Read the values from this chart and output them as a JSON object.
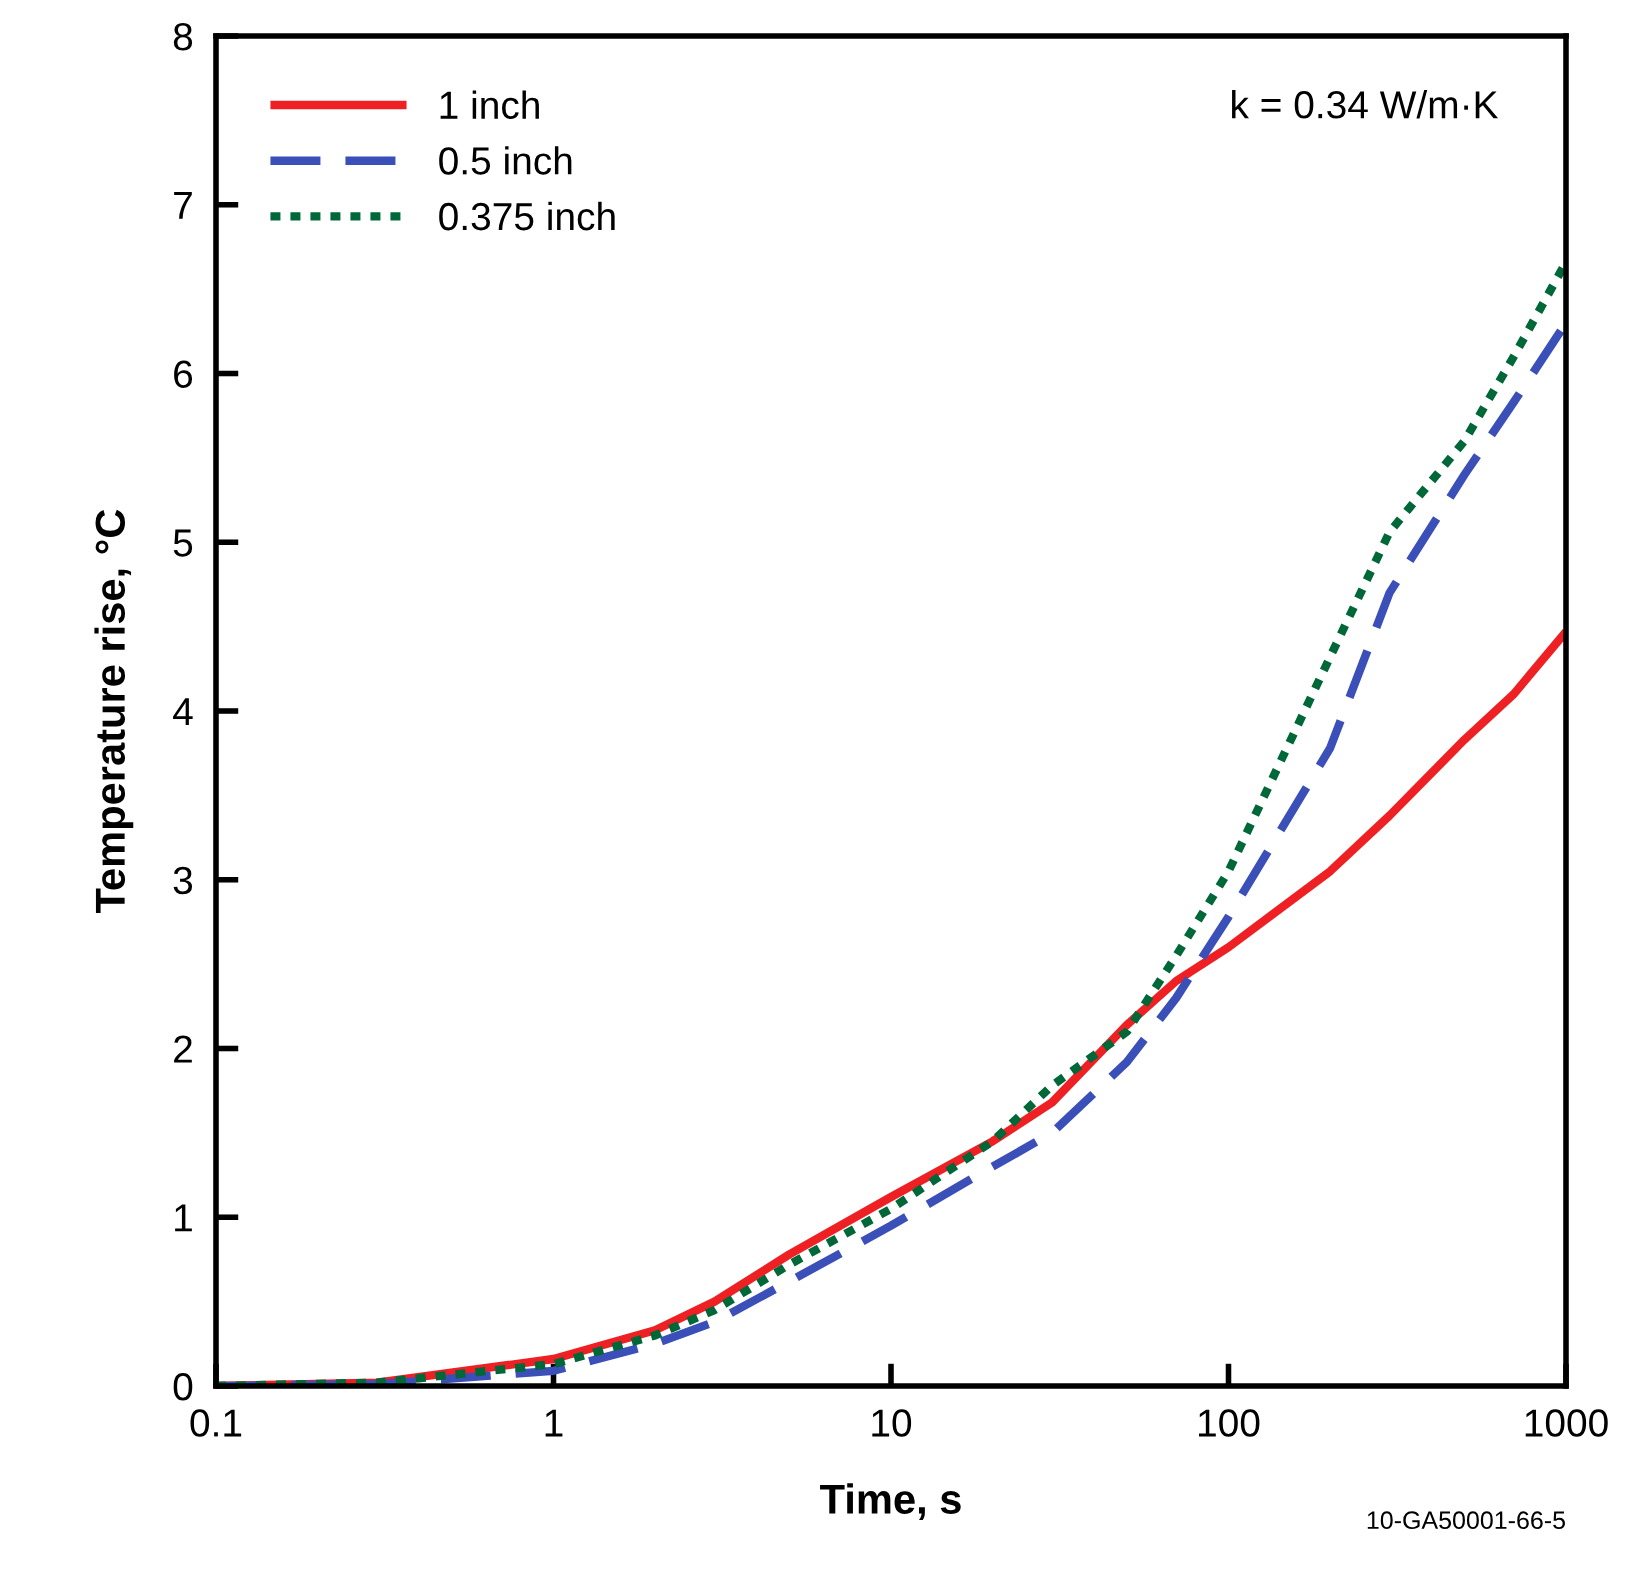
{
  "chart_data": {
    "type": "line",
    "xlabel": "Time, s",
    "ylabel": "Temperature rise, °C",
    "log": "x",
    "xlim": [
      0.1,
      1000
    ],
    "xticks": [
      0.1,
      1,
      10,
      100,
      1000
    ],
    "ylim": [
      0,
      8
    ],
    "yticks": [
      0,
      1,
      2,
      3,
      4,
      5,
      6,
      7,
      8
    ],
    "grid": false,
    "legend": "top left",
    "marker": "none",
    "x": [
      0.1,
      0.3,
      1,
      2,
      3,
      5,
      10,
      20,
      30,
      50,
      70,
      100,
      200,
      300,
      500,
      700,
      1000
    ],
    "series": [
      {
        "name": "1 inch",
        "color": "#ee2024",
        "line_style": "solid",
        "values": [
          0,
          0.02,
          0.16,
          0.33,
          0.5,
          0.78,
          1.12,
          1.45,
          1.68,
          2.14,
          2.4,
          2.6,
          3.05,
          3.38,
          3.83,
          4.1,
          4.47
        ]
      },
      {
        "name": "0.5 inch",
        "color": "#3b4fb8",
        "line_style": "dashed",
        "values": [
          0,
          0.01,
          0.09,
          0.25,
          0.38,
          0.62,
          0.95,
          1.3,
          1.5,
          1.92,
          2.3,
          2.78,
          3.78,
          4.7,
          5.4,
          5.83,
          6.3
        ]
      },
      {
        "name": "0.375 inch",
        "color": "#006838",
        "line_style": "dotted",
        "values": [
          0,
          0.02,
          0.13,
          0.3,
          0.45,
          0.72,
          1.05,
          1.45,
          1.78,
          2.1,
          2.55,
          3.05,
          4.32,
          5.06,
          5.6,
          6.1,
          6.66
        ]
      }
    ],
    "annotations": [
      "k = 0.34 W/m·K",
      "10-GA50001-66-5"
    ]
  }
}
